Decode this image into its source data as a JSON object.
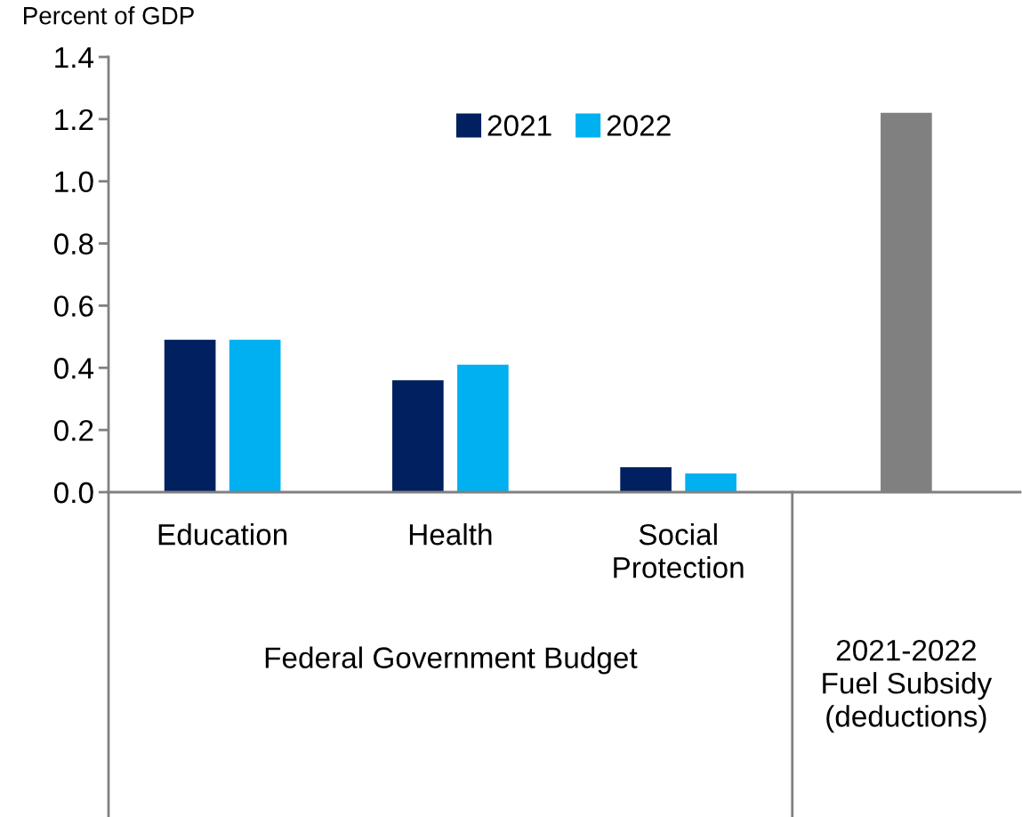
{
  "chart_data": {
    "type": "bar",
    "ylabel": "Percent of GDP",
    "categories": [
      "Education",
      "Health",
      "Social\nProtection",
      null
    ],
    "series": [
      {
        "name": "2021",
        "color": "#002060",
        "values": [
          0.49,
          0.36,
          0.08,
          null
        ]
      },
      {
        "name": "2022",
        "color": "#00b0f0",
        "values": [
          0.49,
          0.41,
          0.06,
          null
        ]
      },
      {
        "color": "#808080",
        "values": [
          null,
          null,
          null,
          1.22
        ]
      }
    ],
    "annotations": [
      "Federal Government Budget",
      "2021-2022\nFuel Subsidy\n(deductions)"
    ],
    "ylim": [
      0.0,
      1.4
    ],
    "yticks": [
      {
        "value": 0,
        "label": "0.0"
      },
      0.2,
      0.4,
      0.6,
      0.8,
      {
        "value": 1,
        "label": "1.0"
      },
      1.2,
      1.4
    ],
    "grid": false,
    "legend": "top center"
  }
}
